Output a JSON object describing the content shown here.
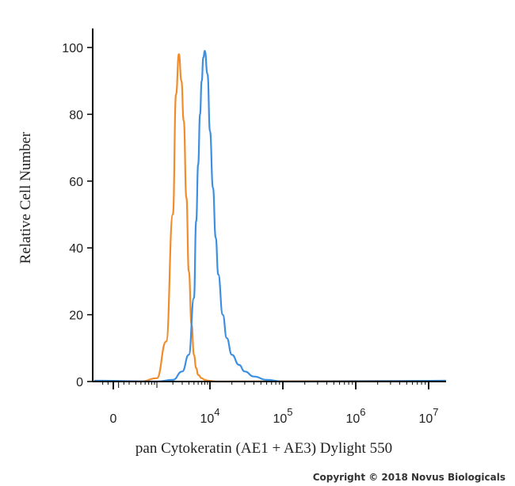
{
  "chart_data": {
    "type": "line",
    "xlabel": "pan Cytokeratin (AE1 + AE3) Dylight 550",
    "ylabel": "Relative Cell Number",
    "x_scale": "biexponential",
    "ylim": [
      0,
      100
    ],
    "y_ticks": [
      "0",
      "20",
      "40",
      "60",
      "80",
      "100"
    ],
    "x_ticks": [
      {
        "base": "0",
        "exp": ""
      },
      {
        "base": "10",
        "exp": "4"
      },
      {
        "base": "10",
        "exp": "5"
      },
      {
        "base": "10",
        "exp": "6"
      },
      {
        "base": "10",
        "exp": "7"
      }
    ],
    "grid": false,
    "series": [
      {
        "color": "#f08c2c",
        "x": [
          500,
          1000,
          1500,
          2000,
          2300,
          2600,
          2900,
          3200,
          3600,
          4000,
          4500,
          5000,
          5500,
          6000,
          7000,
          8000,
          9000,
          10000,
          12000,
          15000
        ],
        "y": [
          0,
          1,
          12,
          50,
          86,
          98,
          90,
          78,
          55,
          33,
          17,
          8,
          4,
          2,
          1,
          0.5,
          0.3,
          0.2,
          0,
          0
        ]
      },
      {
        "color": "#3d8fe0",
        "x": [
          1000,
          2000,
          3000,
          4000,
          5000,
          5500,
          6000,
          6500,
          7000,
          7500,
          8000,
          9000,
          10000,
          11000,
          12000,
          13000,
          15000,
          17000,
          20000,
          25000,
          30000,
          40000,
          60000,
          100000,
          200000
        ],
        "y": [
          0,
          0.5,
          3,
          8,
          25,
          48,
          65,
          80,
          90,
          97,
          99,
          92,
          75,
          58,
          43,
          32,
          20,
          13,
          8,
          5,
          3,
          1.5,
          0.5,
          0,
          0
        ]
      }
    ]
  },
  "copyright": "Copyright © 2018 Novus Biologicals"
}
